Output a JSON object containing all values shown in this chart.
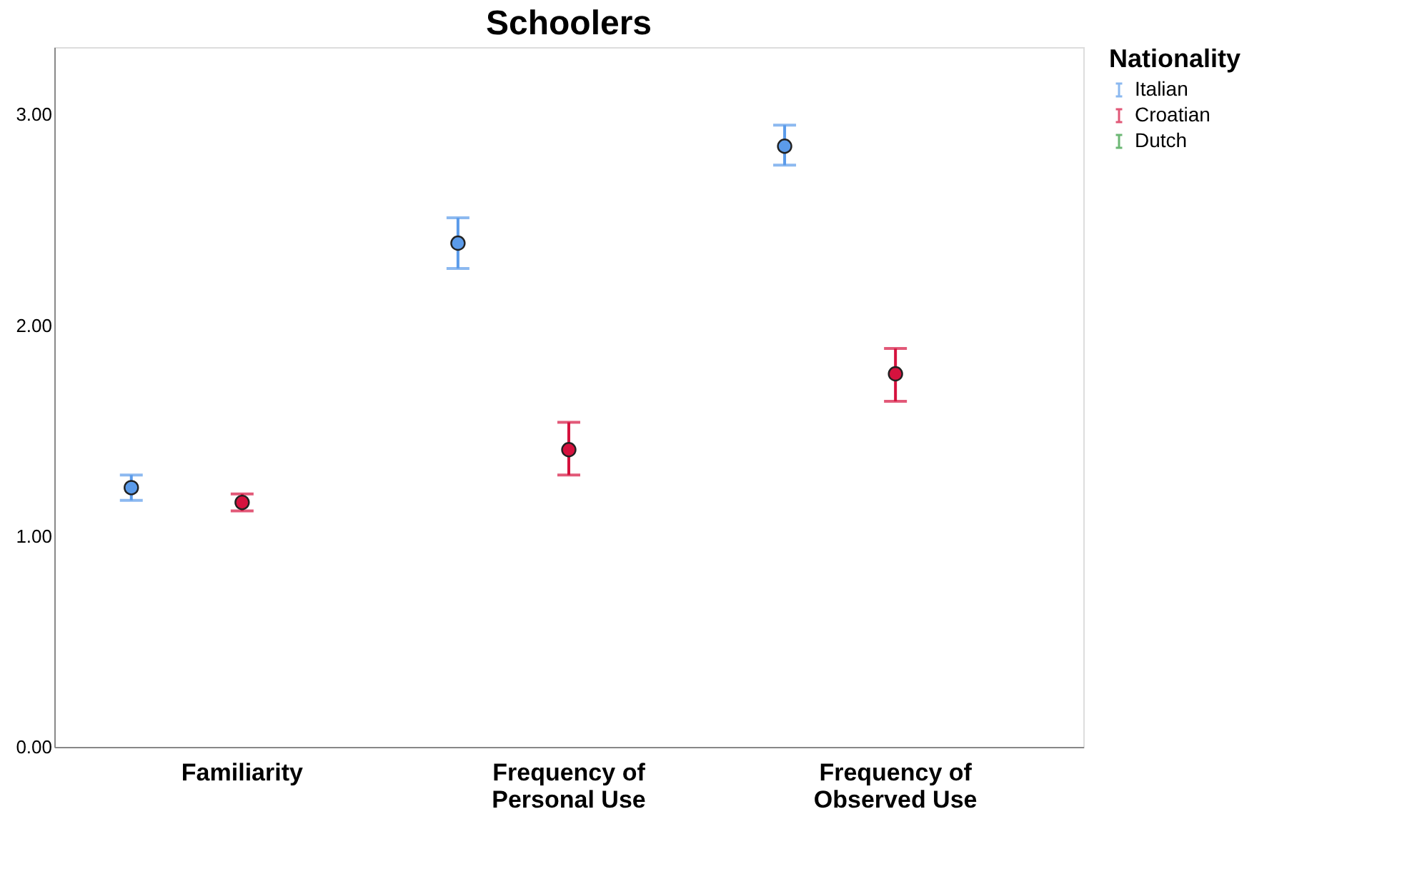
{
  "chart_data": {
    "type": "scatter",
    "title": "Schoolers",
    "legend_title": "Nationality",
    "categories": [
      "Familiarity",
      "Frequency of Personal Use",
      "Frequency of Observed Use"
    ],
    "series": [
      {
        "name": "Italian",
        "color": "#5b9bea",
        "values": [
          1.23,
          2.39,
          2.85
        ],
        "errors": [
          [
            1.17,
            1.29
          ],
          [
            2.27,
            2.51
          ],
          [
            2.76,
            2.95
          ]
        ]
      },
      {
        "name": "Croatian",
        "color": "#d5123e",
        "values": [
          1.16,
          1.41,
          1.77
        ],
        "errors": [
          [
            1.12,
            1.2
          ],
          [
            1.29,
            1.54
          ],
          [
            1.64,
            1.89
          ]
        ]
      },
      {
        "name": "Dutch",
        "color": "#2e9a3a",
        "values": [
          null,
          null,
          null
        ],
        "errors": [
          null,
          null,
          null
        ]
      }
    ],
    "ylim": [
      0,
      3.32
    ],
    "yticks": [
      {
        "value": 0,
        "label": "0.00"
      },
      {
        "value": 1,
        "label": "1.00"
      },
      {
        "value": 2,
        "label": "2.00"
      },
      {
        "value": 3,
        "label": "3.00"
      }
    ],
    "marker": "circle",
    "grid": false,
    "legend": "top right"
  }
}
